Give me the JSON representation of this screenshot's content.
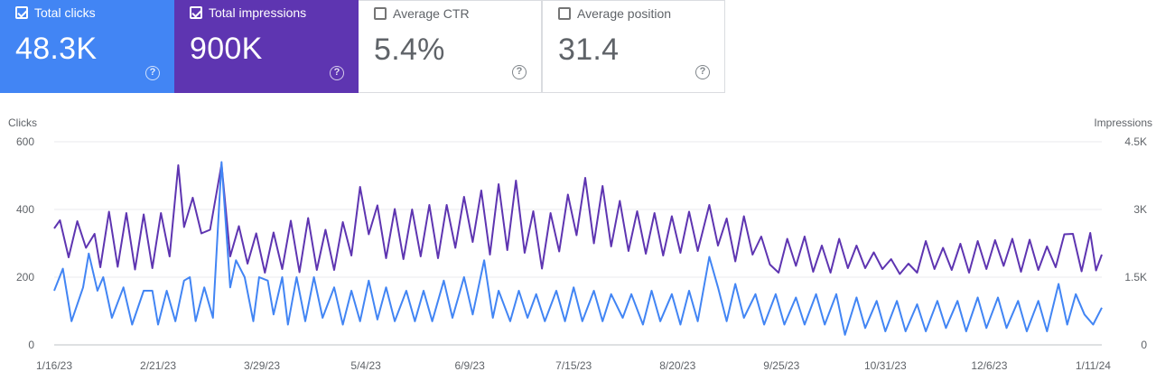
{
  "metrics": [
    {
      "label": "Total clicks",
      "value": "48.3K",
      "checked": true,
      "color": "#4285f4"
    },
    {
      "label": "Total impressions",
      "value": "900K",
      "checked": true,
      "color": "#5e35b1"
    },
    {
      "label": "Average CTR",
      "value": "5.4%",
      "checked": false
    },
    {
      "label": "Average position",
      "value": "31.4",
      "checked": false
    }
  ],
  "help_glyph": "?",
  "chart_data": {
    "type": "line",
    "left_axis_label": "Clicks",
    "right_axis_label": "Impressions",
    "left_ticks": [
      "0",
      "200",
      "400",
      "600"
    ],
    "left_ylim": [
      0,
      600
    ],
    "right_ticks": [
      "0",
      "1.5K",
      "3K",
      "4.5K"
    ],
    "right_ylim": [
      0,
      4500
    ],
    "x_ticks": [
      "1/16/23",
      "2/21/23",
      "3/29/23",
      "5/4/23",
      "6/9/23",
      "7/15/23",
      "8/20/23",
      "9/25/23",
      "10/31/23",
      "12/6/23",
      "1/11/24"
    ],
    "x_range": [
      "2023-01-16",
      "2024-01-14"
    ],
    "grid": true,
    "series": [
      {
        "name": "Clicks",
        "axis": "left",
        "color": "#4285f4",
        "points": [
          [
            "2023-01-16",
            160
          ],
          [
            "2023-01-19",
            225
          ],
          [
            "2023-01-22",
            70
          ],
          [
            "2023-01-26",
            170
          ],
          [
            "2023-01-28",
            270
          ],
          [
            "2023-01-31",
            160
          ],
          [
            "2023-02-02",
            200
          ],
          [
            "2023-02-05",
            80
          ],
          [
            "2023-02-09",
            170
          ],
          [
            "2023-02-12",
            60
          ],
          [
            "2023-02-16",
            160
          ],
          [
            "2023-02-19",
            160
          ],
          [
            "2023-02-21",
            60
          ],
          [
            "2023-02-24",
            160
          ],
          [
            "2023-02-27",
            70
          ],
          [
            "2023-03-02",
            190
          ],
          [
            "2023-03-04",
            200
          ],
          [
            "2023-03-06",
            70
          ],
          [
            "2023-03-09",
            170
          ],
          [
            "2023-03-12",
            80
          ],
          [
            "2023-03-15",
            540
          ],
          [
            "2023-03-18",
            170
          ],
          [
            "2023-03-20",
            250
          ],
          [
            "2023-03-23",
            200
          ],
          [
            "2023-03-26",
            70
          ],
          [
            "2023-03-28",
            200
          ],
          [
            "2023-03-31",
            190
          ],
          [
            "2023-04-02",
            90
          ],
          [
            "2023-04-05",
            200
          ],
          [
            "2023-04-07",
            60
          ],
          [
            "2023-04-10",
            200
          ],
          [
            "2023-04-13",
            70
          ],
          [
            "2023-04-16",
            200
          ],
          [
            "2023-04-19",
            80
          ],
          [
            "2023-04-23",
            170
          ],
          [
            "2023-04-26",
            60
          ],
          [
            "2023-04-29",
            160
          ],
          [
            "2023-05-02",
            70
          ],
          [
            "2023-05-05",
            190
          ],
          [
            "2023-05-08",
            75
          ],
          [
            "2023-05-11",
            170
          ],
          [
            "2023-05-14",
            70
          ],
          [
            "2023-05-18",
            160
          ],
          [
            "2023-05-21",
            70
          ],
          [
            "2023-05-24",
            160
          ],
          [
            "2023-05-27",
            70
          ],
          [
            "2023-05-31",
            190
          ],
          [
            "2023-06-03",
            80
          ],
          [
            "2023-06-07",
            200
          ],
          [
            "2023-06-10",
            90
          ],
          [
            "2023-06-14",
            250
          ],
          [
            "2023-06-17",
            80
          ],
          [
            "2023-06-19",
            160
          ],
          [
            "2023-06-23",
            70
          ],
          [
            "2023-06-26",
            160
          ],
          [
            "2023-06-29",
            80
          ],
          [
            "2023-07-02",
            150
          ],
          [
            "2023-07-05",
            70
          ],
          [
            "2023-07-09",
            160
          ],
          [
            "2023-07-12",
            70
          ],
          [
            "2023-07-15",
            170
          ],
          [
            "2023-07-18",
            70
          ],
          [
            "2023-07-22",
            160
          ],
          [
            "2023-07-25",
            70
          ],
          [
            "2023-07-28",
            150
          ],
          [
            "2023-08-01",
            80
          ],
          [
            "2023-08-04",
            150
          ],
          [
            "2023-08-08",
            60
          ],
          [
            "2023-08-11",
            160
          ],
          [
            "2023-08-14",
            70
          ],
          [
            "2023-08-18",
            150
          ],
          [
            "2023-08-21",
            60
          ],
          [
            "2023-08-24",
            160
          ],
          [
            "2023-08-27",
            70
          ],
          [
            "2023-08-31",
            260
          ],
          [
            "2023-09-03",
            170
          ],
          [
            "2023-09-06",
            70
          ],
          [
            "2023-09-09",
            180
          ],
          [
            "2023-09-12",
            80
          ],
          [
            "2023-09-16",
            150
          ],
          [
            "2023-09-19",
            60
          ],
          [
            "2023-09-23",
            150
          ],
          [
            "2023-09-26",
            60
          ],
          [
            "2023-09-30",
            140
          ],
          [
            "2023-10-03",
            60
          ],
          [
            "2023-10-07",
            150
          ],
          [
            "2023-10-10",
            60
          ],
          [
            "2023-10-14",
            150
          ],
          [
            "2023-10-17",
            30
          ],
          [
            "2023-10-21",
            140
          ],
          [
            "2023-10-24",
            50
          ],
          [
            "2023-10-28",
            130
          ],
          [
            "2023-10-31",
            40
          ],
          [
            "2023-11-04",
            130
          ],
          [
            "2023-11-07",
            40
          ],
          [
            "2023-11-11",
            120
          ],
          [
            "2023-11-14",
            40
          ],
          [
            "2023-11-18",
            130
          ],
          [
            "2023-11-21",
            50
          ],
          [
            "2023-11-25",
            130
          ],
          [
            "2023-11-28",
            40
          ],
          [
            "2023-12-02",
            140
          ],
          [
            "2023-12-05",
            50
          ],
          [
            "2023-12-09",
            140
          ],
          [
            "2023-12-12",
            50
          ],
          [
            "2023-12-16",
            130
          ],
          [
            "2023-12-19",
            40
          ],
          [
            "2023-12-23",
            130
          ],
          [
            "2023-12-26",
            40
          ],
          [
            "2023-12-30",
            180
          ],
          [
            "2024-01-02",
            60
          ],
          [
            "2024-01-05",
            150
          ],
          [
            "2024-01-08",
            90
          ],
          [
            "2024-01-11",
            60
          ],
          [
            "2024-01-14",
            110
          ]
        ]
      },
      {
        "name": "Impressions",
        "axis": "right",
        "color": "#5e35b1",
        "points": [
          [
            "2023-01-16",
            2580
          ],
          [
            "2023-01-18",
            2760
          ],
          [
            "2023-01-21",
            1940
          ],
          [
            "2023-01-24",
            2740
          ],
          [
            "2023-01-27",
            2150
          ],
          [
            "2023-01-30",
            2460
          ],
          [
            "2023-02-01",
            1720
          ],
          [
            "2023-02-04",
            2950
          ],
          [
            "2023-02-07",
            1730
          ],
          [
            "2023-02-10",
            2920
          ],
          [
            "2023-02-13",
            1670
          ],
          [
            "2023-02-16",
            2890
          ],
          [
            "2023-02-19",
            1700
          ],
          [
            "2023-02-22",
            2920
          ],
          [
            "2023-02-25",
            1960
          ],
          [
            "2023-02-28",
            3980
          ],
          [
            "2023-03-02",
            2610
          ],
          [
            "2023-03-05",
            3260
          ],
          [
            "2023-03-08",
            2470
          ],
          [
            "2023-03-11",
            2550
          ],
          [
            "2023-03-15",
            4000
          ],
          [
            "2023-03-18",
            1960
          ],
          [
            "2023-03-21",
            2630
          ],
          [
            "2023-03-24",
            1800
          ],
          [
            "2023-03-27",
            2470
          ],
          [
            "2023-03-30",
            1600
          ],
          [
            "2023-04-02",
            2490
          ],
          [
            "2023-04-05",
            1680
          ],
          [
            "2023-04-08",
            2750
          ],
          [
            "2023-04-11",
            1610
          ],
          [
            "2023-04-14",
            2810
          ],
          [
            "2023-04-17",
            1660
          ],
          [
            "2023-04-20",
            2550
          ],
          [
            "2023-04-23",
            1660
          ],
          [
            "2023-04-26",
            2720
          ],
          [
            "2023-04-29",
            1980
          ],
          [
            "2023-05-02",
            3500
          ],
          [
            "2023-05-05",
            2450
          ],
          [
            "2023-05-08",
            3090
          ],
          [
            "2023-05-11",
            1920
          ],
          [
            "2023-05-14",
            3010
          ],
          [
            "2023-05-17",
            1900
          ],
          [
            "2023-05-20",
            3000
          ],
          [
            "2023-05-23",
            1960
          ],
          [
            "2023-05-26",
            3100
          ],
          [
            "2023-05-29",
            1920
          ],
          [
            "2023-06-01",
            3100
          ],
          [
            "2023-06-04",
            2150
          ],
          [
            "2023-06-07",
            3280
          ],
          [
            "2023-06-10",
            2280
          ],
          [
            "2023-06-13",
            3420
          ],
          [
            "2023-06-16",
            2000
          ],
          [
            "2023-06-19",
            3560
          ],
          [
            "2023-06-22",
            2100
          ],
          [
            "2023-06-25",
            3640
          ],
          [
            "2023-06-28",
            2040
          ],
          [
            "2023-07-01",
            2960
          ],
          [
            "2023-07-04",
            1690
          ],
          [
            "2023-07-07",
            2920
          ],
          [
            "2023-07-10",
            2070
          ],
          [
            "2023-07-13",
            3330
          ],
          [
            "2023-07-16",
            2430
          ],
          [
            "2023-07-19",
            3700
          ],
          [
            "2023-07-22",
            2250
          ],
          [
            "2023-07-25",
            3520
          ],
          [
            "2023-07-28",
            2180
          ],
          [
            "2023-07-31",
            3190
          ],
          [
            "2023-08-03",
            2080
          ],
          [
            "2023-08-06",
            2960
          ],
          [
            "2023-08-09",
            2020
          ],
          [
            "2023-08-12",
            2920
          ],
          [
            "2023-08-15",
            1980
          ],
          [
            "2023-08-18",
            2850
          ],
          [
            "2023-08-21",
            2040
          ],
          [
            "2023-08-24",
            2950
          ],
          [
            "2023-08-27",
            2080
          ],
          [
            "2023-08-31",
            3100
          ],
          [
            "2023-09-03",
            2200
          ],
          [
            "2023-09-06",
            2800
          ],
          [
            "2023-09-09",
            1850
          ],
          [
            "2023-09-12",
            2850
          ],
          [
            "2023-09-15",
            2000
          ],
          [
            "2023-09-18",
            2400
          ],
          [
            "2023-09-21",
            1780
          ],
          [
            "2023-09-24",
            1600
          ],
          [
            "2023-09-27",
            2350
          ],
          [
            "2023-09-30",
            1750
          ],
          [
            "2023-10-03",
            2400
          ],
          [
            "2023-10-06",
            1620
          ],
          [
            "2023-10-09",
            2200
          ],
          [
            "2023-10-12",
            1600
          ],
          [
            "2023-10-15",
            2350
          ],
          [
            "2023-10-18",
            1700
          ],
          [
            "2023-10-21",
            2200
          ],
          [
            "2023-10-24",
            1700
          ],
          [
            "2023-10-27",
            2050
          ],
          [
            "2023-10-30",
            1680
          ],
          [
            "2023-11-02",
            1900
          ],
          [
            "2023-11-05",
            1570
          ],
          [
            "2023-11-08",
            1800
          ],
          [
            "2023-11-11",
            1600
          ],
          [
            "2023-11-14",
            2300
          ],
          [
            "2023-11-17",
            1680
          ],
          [
            "2023-11-20",
            2150
          ],
          [
            "2023-11-23",
            1660
          ],
          [
            "2023-11-26",
            2240
          ],
          [
            "2023-11-29",
            1600
          ],
          [
            "2023-12-02",
            2300
          ],
          [
            "2023-12-05",
            1680
          ],
          [
            "2023-12-08",
            2320
          ],
          [
            "2023-12-11",
            1750
          ],
          [
            "2023-12-14",
            2350
          ],
          [
            "2023-12-17",
            1620
          ],
          [
            "2023-12-20",
            2330
          ],
          [
            "2023-12-23",
            1660
          ],
          [
            "2023-12-26",
            2180
          ],
          [
            "2023-12-29",
            1720
          ],
          [
            "2024-01-01",
            2450
          ],
          [
            "2024-01-04",
            2460
          ],
          [
            "2024-01-07",
            1630
          ],
          [
            "2024-01-10",
            2480
          ],
          [
            "2024-01-12",
            1650
          ],
          [
            "2024-01-14",
            2000
          ]
        ]
      }
    ]
  }
}
